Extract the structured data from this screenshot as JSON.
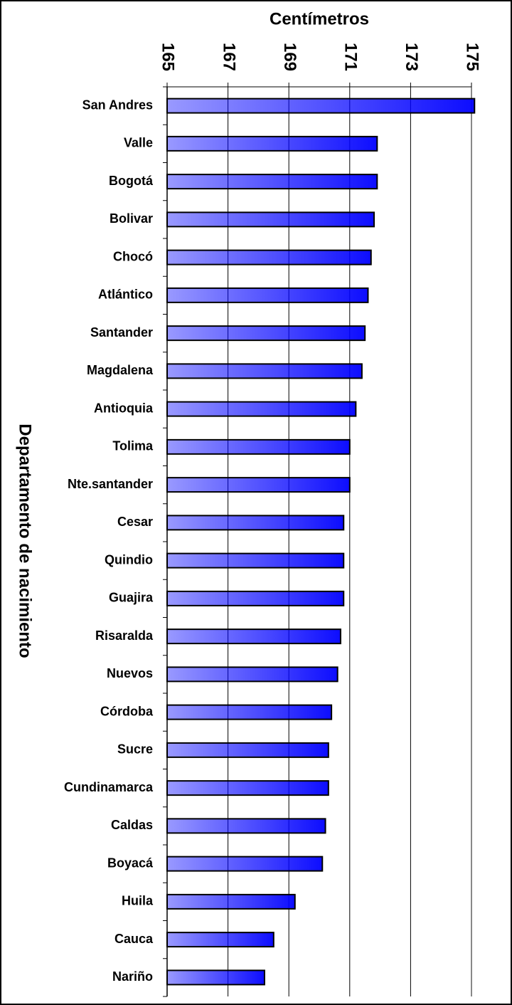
{
  "chart_data": {
    "type": "bar",
    "orientation": "horizontal",
    "x_label": "Centímetros",
    "y_label": "Departamento de nacimiento",
    "categories": [
      "San Andres",
      "Valle",
      "Bogotá",
      "Bolivar",
      "Chocó",
      "Atlántico",
      "Santander",
      "Magdalena",
      "Antioquia",
      "Tolima",
      "Nte.santander",
      "Cesar",
      "Quindio",
      "Guajira",
      "Risaralda",
      "Nuevos",
      "Córdoba",
      "Sucre",
      "Cundinamarca",
      "Caldas",
      "Boyacá",
      "Huila",
      "Cauca",
      "Nariño"
    ],
    "values": [
      175.1,
      171.9,
      171.9,
      171.8,
      171.7,
      171.6,
      171.5,
      171.4,
      171.2,
      171.0,
      171.0,
      170.8,
      170.8,
      170.8,
      170.7,
      170.6,
      170.4,
      170.3,
      170.3,
      170.2,
      170.1,
      169.2,
      168.5,
      168.2
    ],
    "color": "#0000ff",
    "xlim": [
      165,
      175
    ],
    "xticks": [
      165,
      167,
      169,
      171,
      173,
      175
    ],
    "grid": true
  }
}
